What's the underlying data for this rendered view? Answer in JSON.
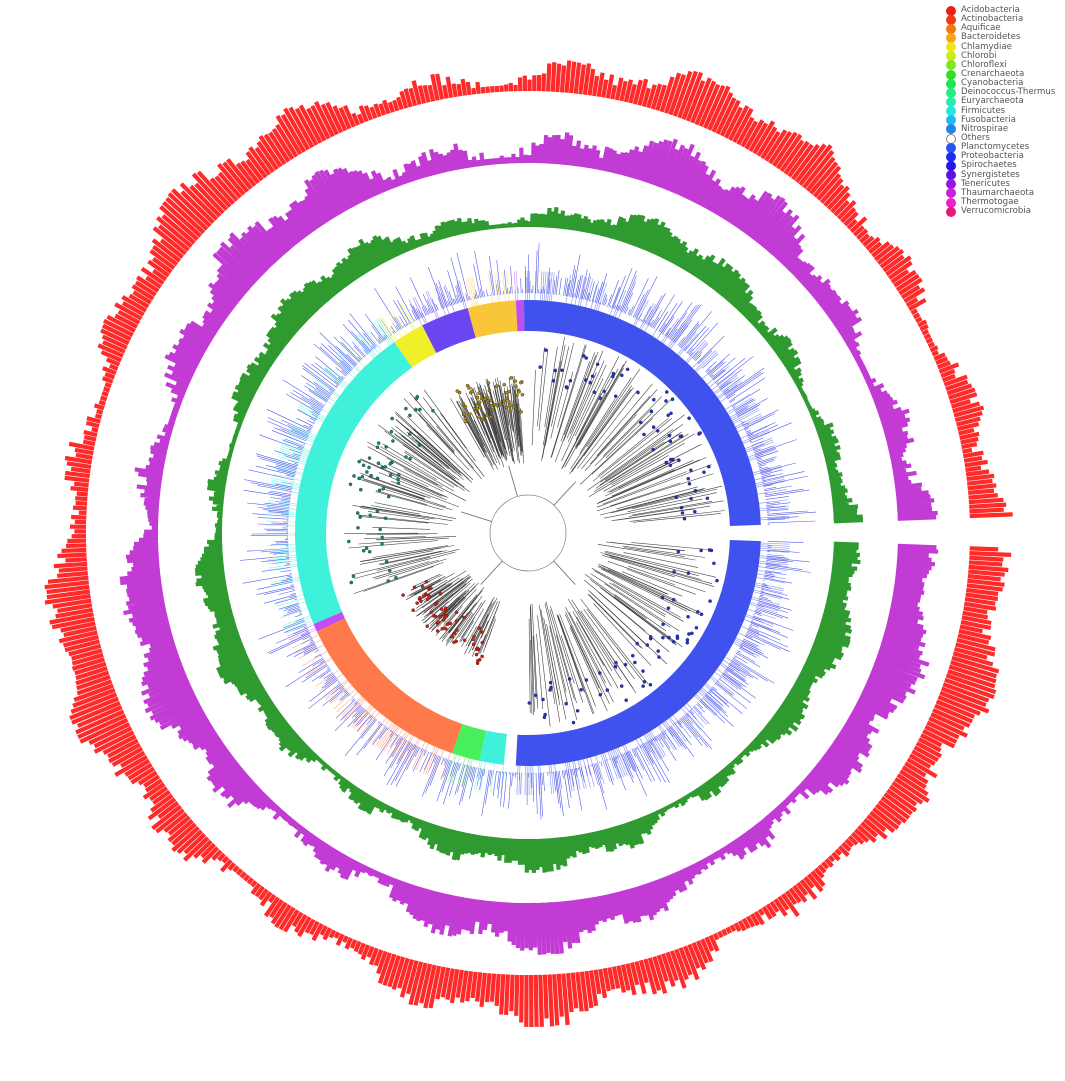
{
  "legend": {
    "items": [
      {
        "label": "Acidobacteria",
        "color": "#e8201c"
      },
      {
        "label": "Actinobacteria",
        "color": "#f03b14"
      },
      {
        "label": "Aquificae",
        "color": "#f07a12"
      },
      {
        "label": "Bacteroidetes",
        "color": "#f5a811"
      },
      {
        "label": "Chlamydiae",
        "color": "#f2e41c"
      },
      {
        "label": "Chlorobi",
        "color": "#c8ec18"
      },
      {
        "label": "Chloroflexi",
        "color": "#7fe51f"
      },
      {
        "label": "Crenarchaeota",
        "color": "#33dd2a"
      },
      {
        "label": "Cyanobacteria",
        "color": "#22e653"
      },
      {
        "label": "Deinococcus-Thermus",
        "color": "#22ee84"
      },
      {
        "label": "Euryarchaeota",
        "color": "#27ecb4"
      },
      {
        "label": "Firmicutes",
        "color": "#27e6df"
      },
      {
        "label": "Fusobacteria",
        "color": "#1fb9f0"
      },
      {
        "label": "Nitrospirae",
        "color": "#1f86ea"
      },
      {
        "label": "Others",
        "color": "#ffffff",
        "outline": true
      },
      {
        "label": "Planctomycetes",
        "color": "#2455ef"
      },
      {
        "label": "Proteobacteria",
        "color": "#1f2cf0"
      },
      {
        "label": "Spirochaetes",
        "color": "#2818e6"
      },
      {
        "label": "Synergistetes",
        "color": "#5a14e4"
      },
      {
        "label": "Tenericutes",
        "color": "#9514e6"
      },
      {
        "label": "Thaumarchaeota",
        "color": "#cc1fe0"
      },
      {
        "label": "Thermotogae",
        "color": "#ee1fc6"
      },
      {
        "label": "Verrucomicrobia",
        "color": "#e8187a"
      }
    ]
  },
  "rings": [
    {
      "id": "ring-red",
      "color": "#ff2a2a"
    },
    {
      "id": "ring-purple",
      "color": "#c23bd4"
    },
    {
      "id": "ring-green",
      "color": "#2e9a30"
    },
    {
      "id": "ring-blue-bars",
      "color": "#2a36e8"
    }
  ],
  "taxa_band": [
    {
      "phylum": "Proteobacteria",
      "color": "#4052ee"
    },
    {
      "phylum": "Firmicutes",
      "color": "#3ff0da"
    },
    {
      "phylum": "Actinobacteria",
      "color": "#ff7a4a"
    },
    {
      "phylum": "Bacteroidetes",
      "color": "#f9c63a"
    },
    {
      "phylum": "Synergistetes",
      "color": "#6a45f2"
    },
    {
      "phylum": "Chlamydiae",
      "color": "#f1ee2a"
    },
    {
      "phylum": "Cyanobacteria",
      "color": "#48ef5a"
    },
    {
      "phylum": "Tenericutes",
      "color": "#c04ef0"
    }
  ]
}
